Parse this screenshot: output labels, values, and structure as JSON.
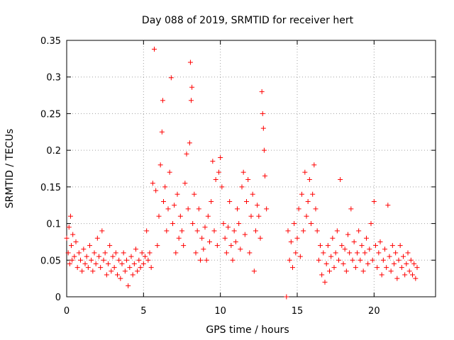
{
  "chart_data": {
    "type": "scatter",
    "title": "Day 088 of 2019, SRMTID for receiver hert",
    "xlabel": "GPS time / hours",
    "ylabel": "SRMTID / TECUs",
    "xlim": [
      0,
      24
    ],
    "ylim": [
      0,
      0.35
    ],
    "xticks": [
      0,
      5,
      10,
      15,
      20
    ],
    "yticks": [
      0,
      0.05,
      0.1,
      0.15,
      0.2,
      0.25,
      0.3,
      0.35
    ],
    "xtick_labels": [
      "0",
      "5",
      "10",
      "15",
      "20"
    ],
    "ytick_labels": [
      "0",
      "0.05",
      "0.1",
      "0.15",
      "0.2",
      "0.25",
      "0.3",
      "0.35"
    ],
    "grid": true,
    "marker": "+",
    "color": "#ff0000",
    "series": [
      {
        "name": "SRMTID",
        "points": [
          [
            0.0,
            0.08
          ],
          [
            0.1,
            0.06
          ],
          [
            0.15,
            0.095
          ],
          [
            0.2,
            0.045
          ],
          [
            0.25,
            0.11
          ],
          [
            0.3,
            0.07
          ],
          [
            0.35,
            0.05
          ],
          [
            0.4,
            0.085
          ],
          [
            0.5,
            0.055
          ],
          [
            0.6,
            0.075
          ],
          [
            0.7,
            0.04
          ],
          [
            0.8,
            0.06
          ],
          [
            0.9,
            0.05
          ],
          [
            1.0,
            0.035
          ],
          [
            1.1,
            0.065
          ],
          [
            1.2,
            0.045
          ],
          [
            1.3,
            0.055
          ],
          [
            1.4,
            0.04
          ],
          [
            1.5,
            0.07
          ],
          [
            1.6,
            0.05
          ],
          [
            1.7,
            0.035
          ],
          [
            1.8,
            0.06
          ],
          [
            1.9,
            0.045
          ],
          [
            2.0,
            0.08
          ],
          [
            2.1,
            0.055
          ],
          [
            2.2,
            0.04
          ],
          [
            2.3,
            0.09
          ],
          [
            2.4,
            0.05
          ],
          [
            2.5,
            0.06
          ],
          [
            2.6,
            0.03
          ],
          [
            2.7,
            0.045
          ],
          [
            2.8,
            0.07
          ],
          [
            2.9,
            0.035
          ],
          [
            3.0,
            0.055
          ],
          [
            3.1,
            0.04
          ],
          [
            3.2,
            0.06
          ],
          [
            3.3,
            0.03
          ],
          [
            3.4,
            0.05
          ],
          [
            3.5,
            0.025
          ],
          [
            3.6,
            0.045
          ],
          [
            3.7,
            0.06
          ],
          [
            3.8,
            0.035
          ],
          [
            3.9,
            0.05
          ],
          [
            4.0,
            0.015
          ],
          [
            4.1,
            0.04
          ],
          [
            4.2,
            0.055
          ],
          [
            4.3,
            0.03
          ],
          [
            4.4,
            0.045
          ],
          [
            4.5,
            0.065
          ],
          [
            4.6,
            0.035
          ],
          [
            4.7,
            0.05
          ],
          [
            4.8,
            0.04
          ],
          [
            4.9,
            0.06
          ],
          [
            5.0,
            0.045
          ],
          [
            5.1,
            0.055
          ],
          [
            5.2,
            0.09
          ],
          [
            5.3,
            0.05
          ],
          [
            5.4,
            0.06
          ],
          [
            5.5,
            0.04
          ],
          [
            5.6,
            0.155
          ],
          [
            5.7,
            0.338
          ],
          [
            5.8,
            0.145
          ],
          [
            5.9,
            0.07
          ],
          [
            6.0,
            0.11
          ],
          [
            6.1,
            0.18
          ],
          [
            6.2,
            0.225
          ],
          [
            6.25,
            0.268
          ],
          [
            6.3,
            0.13
          ],
          [
            6.4,
            0.15
          ],
          [
            6.5,
            0.09
          ],
          [
            6.6,
            0.12
          ],
          [
            6.7,
            0.17
          ],
          [
            6.8,
            0.299
          ],
          [
            6.9,
            0.1
          ],
          [
            7.0,
            0.125
          ],
          [
            7.1,
            0.06
          ],
          [
            7.2,
            0.14
          ],
          [
            7.3,
            0.08
          ],
          [
            7.4,
            0.11
          ],
          [
            7.5,
            0.09
          ],
          [
            7.6,
            0.07
          ],
          [
            7.7,
            0.155
          ],
          [
            7.8,
            0.195
          ],
          [
            7.9,
            0.12
          ],
          [
            8.0,
            0.21
          ],
          [
            8.05,
            0.32
          ],
          [
            8.1,
            0.268
          ],
          [
            8.15,
            0.286
          ],
          [
            8.2,
            0.1
          ],
          [
            8.3,
            0.14
          ],
          [
            8.4,
            0.06
          ],
          [
            8.5,
            0.09
          ],
          [
            8.6,
            0.12
          ],
          [
            8.7,
            0.05
          ],
          [
            8.8,
            0.08
          ],
          [
            8.9,
            0.065
          ],
          [
            9.0,
            0.095
          ],
          [
            9.1,
            0.05
          ],
          [
            9.2,
            0.11
          ],
          [
            9.3,
            0.075
          ],
          [
            9.4,
            0.13
          ],
          [
            9.5,
            0.185
          ],
          [
            9.6,
            0.09
          ],
          [
            9.7,
            0.16
          ],
          [
            9.8,
            0.07
          ],
          [
            9.9,
            0.17
          ],
          [
            10.0,
            0.19
          ],
          [
            10.1,
            0.15
          ],
          [
            10.2,
            0.1
          ],
          [
            10.3,
            0.08
          ],
          [
            10.4,
            0.06
          ],
          [
            10.5,
            0.095
          ],
          [
            10.6,
            0.13
          ],
          [
            10.7,
            0.07
          ],
          [
            10.8,
            0.05
          ],
          [
            10.9,
            0.09
          ],
          [
            11.0,
            0.075
          ],
          [
            11.1,
            0.12
          ],
          [
            11.2,
            0.1
          ],
          [
            11.3,
            0.065
          ],
          [
            11.4,
            0.15
          ],
          [
            11.5,
            0.17
          ],
          [
            11.6,
            0.085
          ],
          [
            11.7,
            0.13
          ],
          [
            11.8,
            0.16
          ],
          [
            11.9,
            0.06
          ],
          [
            12.0,
            0.11
          ],
          [
            12.1,
            0.14
          ],
          [
            12.2,
            0.035
          ],
          [
            12.3,
            0.09
          ],
          [
            12.4,
            0.125
          ],
          [
            12.5,
            0.11
          ],
          [
            12.6,
            0.08
          ],
          [
            12.7,
            0.28
          ],
          [
            12.75,
            0.25
          ],
          [
            12.8,
            0.23
          ],
          [
            12.85,
            0.2
          ],
          [
            12.9,
            0.165
          ],
          [
            13.0,
            0.12
          ],
          [
            14.3,
            0.0
          ],
          [
            14.4,
            0.09
          ],
          [
            14.5,
            0.05
          ],
          [
            14.6,
            0.075
          ],
          [
            14.7,
            0.04
          ],
          [
            14.8,
            0.1
          ],
          [
            14.9,
            0.06
          ],
          [
            15.0,
            0.08
          ],
          [
            15.1,
            0.12
          ],
          [
            15.2,
            0.055
          ],
          [
            15.3,
            0.14
          ],
          [
            15.4,
            0.09
          ],
          [
            15.5,
            0.17
          ],
          [
            15.6,
            0.11
          ],
          [
            15.7,
            0.13
          ],
          [
            15.8,
            0.16
          ],
          [
            15.9,
            0.1
          ],
          [
            16.0,
            0.14
          ],
          [
            16.1,
            0.18
          ],
          [
            16.2,
            0.12
          ],
          [
            16.3,
            0.09
          ],
          [
            16.4,
            0.05
          ],
          [
            16.5,
            0.07
          ],
          [
            16.6,
            0.03
          ],
          [
            16.7,
            0.06
          ],
          [
            16.8,
            0.02
          ],
          [
            16.9,
            0.045
          ],
          [
            17.0,
            0.07
          ],
          [
            17.1,
            0.035
          ],
          [
            17.2,
            0.055
          ],
          [
            17.3,
            0.08
          ],
          [
            17.4,
            0.04
          ],
          [
            17.5,
            0.06
          ],
          [
            17.6,
            0.09
          ],
          [
            17.7,
            0.05
          ],
          [
            17.8,
            0.16
          ],
          [
            17.9,
            0.07
          ],
          [
            18.0,
            0.045
          ],
          [
            18.1,
            0.065
          ],
          [
            18.2,
            0.035
          ],
          [
            18.3,
            0.085
          ],
          [
            18.4,
            0.06
          ],
          [
            18.5,
            0.12
          ],
          [
            18.6,
            0.05
          ],
          [
            18.7,
            0.075
          ],
          [
            18.8,
            0.04
          ],
          [
            18.9,
            0.06
          ],
          [
            19.0,
            0.09
          ],
          [
            19.1,
            0.05
          ],
          [
            19.2,
            0.07
          ],
          [
            19.3,
            0.035
          ],
          [
            19.4,
            0.06
          ],
          [
            19.5,
            0.08
          ],
          [
            19.6,
            0.045
          ],
          [
            19.7,
            0.065
          ],
          [
            19.8,
            0.1
          ],
          [
            19.9,
            0.05
          ],
          [
            20.0,
            0.13
          ],
          [
            20.1,
            0.07
          ],
          [
            20.2,
            0.04
          ],
          [
            20.3,
            0.06
          ],
          [
            20.4,
            0.075
          ],
          [
            20.5,
            0.03
          ],
          [
            20.6,
            0.05
          ],
          [
            20.7,
            0.065
          ],
          [
            20.8,
            0.04
          ],
          [
            20.9,
            0.125
          ],
          [
            21.0,
            0.055
          ],
          [
            21.1,
            0.035
          ],
          [
            21.2,
            0.07
          ],
          [
            21.3,
            0.045
          ],
          [
            21.4,
            0.06
          ],
          [
            21.5,
            0.025
          ],
          [
            21.6,
            0.05
          ],
          [
            21.7,
            0.07
          ],
          [
            21.8,
            0.04
          ],
          [
            21.9,
            0.055
          ],
          [
            22.0,
            0.03
          ],
          [
            22.1,
            0.045
          ],
          [
            22.2,
            0.06
          ],
          [
            22.3,
            0.035
          ],
          [
            22.4,
            0.05
          ],
          [
            22.5,
            0.03
          ],
          [
            22.6,
            0.045
          ],
          [
            22.7,
            0.025
          ],
          [
            22.8,
            0.04
          ]
        ]
      }
    ]
  }
}
